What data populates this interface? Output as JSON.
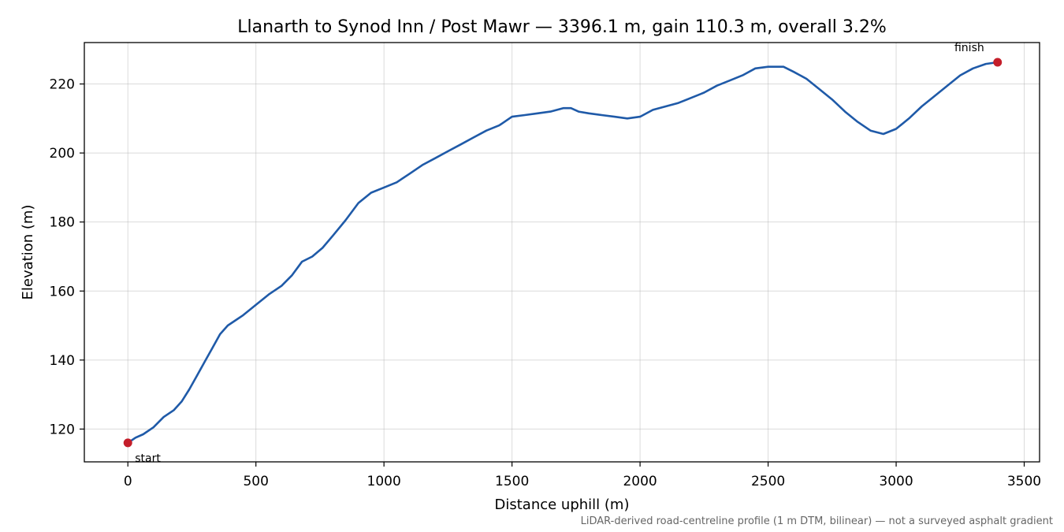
{
  "chart_data": {
    "type": "line",
    "title": "Llanarth to Synod Inn / Post Mawr — 3396.1 m, gain 110.3 m, overall 3.2%",
    "xlabel": "Distance uphill (m)",
    "ylabel": "Elevation (m)",
    "xlim": [
      -170,
      3560
    ],
    "ylim": [
      110.5,
      232
    ],
    "xticks": [
      0,
      500,
      1000,
      1500,
      2000,
      2500,
      3000,
      3500
    ],
    "yticks": [
      120,
      140,
      160,
      180,
      200,
      220
    ],
    "grid": true,
    "series": [
      {
        "color": "#1f5aa8",
        "x": [
          0,
          30,
          60,
          100,
          140,
          180,
          210,
          240,
          270,
          300,
          330,
          360,
          390,
          420,
          450,
          500,
          550,
          600,
          640,
          680,
          720,
          760,
          800,
          850,
          900,
          950,
          1000,
          1050,
          1100,
          1150,
          1200,
          1250,
          1300,
          1350,
          1400,
          1450,
          1500,
          1550,
          1600,
          1650,
          1700,
          1730,
          1760,
          1800,
          1850,
          1900,
          1950,
          2000,
          2050,
          2100,
          2150,
          2200,
          2250,
          2300,
          2350,
          2400,
          2450,
          2500,
          2530,
          2560,
          2600,
          2650,
          2700,
          2750,
          2800,
          2850,
          2900,
          2950,
          3000,
          3050,
          3100,
          3150,
          3200,
          3250,
          3300,
          3350,
          3396.1
        ],
        "y": [
          116,
          117.5,
          118.5,
          120.5,
          123.5,
          125.5,
          128,
          131.5,
          135.5,
          139.5,
          143.5,
          147.5,
          150,
          151.5,
          153,
          156,
          159,
          161.5,
          164.5,
          168.5,
          170,
          172.5,
          176,
          180.5,
          185.5,
          188.5,
          190,
          191.5,
          194,
          196.5,
          198.5,
          200.5,
          202.5,
          204.5,
          206.5,
          208,
          210.5,
          211,
          211.5,
          212,
          213,
          213,
          212,
          211.5,
          211,
          210.5,
          210,
          210.5,
          212.5,
          213.5,
          214.5,
          216,
          217.5,
          219.5,
          221,
          222.5,
          224.5,
          225,
          225,
          225,
          223.5,
          221.5,
          218.5,
          215.5,
          212,
          209,
          206.5,
          205.5,
          207,
          210,
          213.5,
          216.5,
          219.5,
          222.5,
          224.5,
          225.8,
          226.3
        ]
      }
    ],
    "markers": [
      {
        "x": 0,
        "y": 116,
        "label": "start",
        "color": "#c41e2a"
      },
      {
        "x": 3396.1,
        "y": 226.3,
        "label": "finish",
        "color": "#c41e2a"
      }
    ],
    "footnote": "LiDAR-derived road-centreline profile (1 m DTM, bilinear) — not a surveyed asphalt gradient"
  }
}
